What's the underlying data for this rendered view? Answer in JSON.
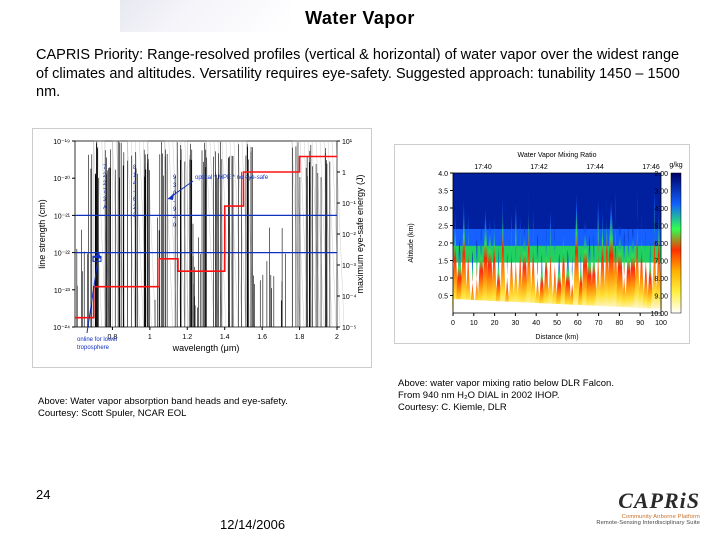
{
  "title": "Water Vapor",
  "body_text": "CAPRIS Priority: Range-resolved profiles (vertical & horizontal) of water vapor over the widest range of climates and altitudes.  Versatility requires eye-safety.  Suggested approach: tunability 1450 – 1500 nm.",
  "page_number": "24",
  "date": "12/14/2006",
  "logo": {
    "main": "CAPRiS",
    "sub_a": "Community Airborne Platform",
    "sub_b": "Remote-Sensing Interdisciplinary Suite"
  },
  "left_figure": {
    "type": "line",
    "title": "",
    "xlabel": "wavelength (μm)",
    "ylabel_left": "line strength (cm)",
    "ylabel_right": "maximum eye-safe energy (J)",
    "xlim": [
      0.6,
      2.0
    ],
    "xticks": [
      "0.8",
      "1",
      "1.2",
      "1.4",
      "1.6",
      "1.8",
      "2"
    ],
    "ylim_left": [
      1e-24,
      1e-19
    ],
    "yticks_left": [
      "10⁻²⁴",
      "10⁻²³",
      "10⁻²²",
      "10⁻²¹",
      "10⁻²⁰",
      "10⁻¹⁹"
    ],
    "ylim_right": [
      1e-05,
      10.0
    ],
    "yticks_right": [
      "10⁻⁵",
      "10⁻⁴",
      "10⁻³",
      "10⁻²",
      "10⁻¹",
      "1",
      "10¹"
    ],
    "red_step_x": [
      0.6,
      0.7,
      0.7,
      1.05,
      1.05,
      1.15,
      1.15,
      1.4,
      1.4,
      1.5,
      1.5,
      1.8,
      1.8,
      2.0
    ],
    "red_step_y": [
      -4.7,
      -4.7,
      -3.7,
      -3.7,
      -2.8,
      -2.8,
      -3.2,
      -3.2,
      -1.1,
      -1.1,
      0.0,
      0.0,
      0.5,
      0.5
    ],
    "blue_lines_y": [
      -21.0,
      -22.0
    ],
    "annotations": {
      "left_groups": [
        "7 2 2 7 3 A",
        "8 1 4 - 6 2 3"
      ],
      "mid_group": [
        "9 3 0 - 9 4 0"
      ],
      "arrow_label": "optical * MPE * no eye-safe",
      "bottom_note": [
        "online for lower",
        "troposphere"
      ]
    },
    "hatch_bands_x": [
      [
        0.7,
        0.76
      ],
      [
        0.8,
        0.84
      ],
      [
        0.88,
        0.99
      ],
      [
        1.08,
        1.2
      ],
      [
        1.3,
        1.52
      ],
      [
        1.76,
        2.0
      ]
    ],
    "comb_dense": 140,
    "colors": {
      "axis": "#000000",
      "spectrum": "#000000",
      "red": "#ff1010",
      "blue": "#1030c0",
      "hatch": "#888888",
      "bg": "#ffffff"
    },
    "caption": "Above: Water vapor absorption band heads and eye-safety.\nCourtesy: Scott Spuler, NCAR EOL"
  },
  "right_figure": {
    "type": "heatmap",
    "title": "Water Vapor Mixing Ratio",
    "xlabel": "Distance (km)",
    "ylabel": "Altitude (km)",
    "cbar_label": "g/kg",
    "xlim": [
      0,
      100
    ],
    "xticks": [
      "0",
      "10",
      "20",
      "30",
      "40",
      "50",
      "60",
      "70",
      "80",
      "90",
      "100"
    ],
    "ylim": [
      0,
      4.0
    ],
    "yticks": [
      "0.5",
      "1.0",
      "1.5",
      "2.0",
      "2.5",
      "3.0",
      "3.5",
      "4.0"
    ],
    "top_times": [
      "17:40",
      "17:42",
      "17:44",
      "17:46"
    ],
    "cbar_ticks": [
      "2.00",
      "3.00",
      "4.00",
      "5.00",
      "6.00",
      "7.00",
      "8.00",
      "9.00",
      "10.00"
    ],
    "colormap_stops": [
      [
        0.0,
        "#ffffff"
      ],
      [
        0.15,
        "#fff040"
      ],
      [
        0.3,
        "#ffb000"
      ],
      [
        0.45,
        "#ff3000"
      ],
      [
        0.6,
        "#30ff50"
      ],
      [
        0.78,
        "#1060ff"
      ],
      [
        1.0,
        "#000060"
      ]
    ],
    "flame_count": 48,
    "background_color": "#ffffff",
    "caption": "Above: water vapor mixing ratio below DLR Falcon.\nFrom 940 nm H₂O DIAL in 2002 IHOP.\nCourtesy: C. Kiemle, DLR"
  }
}
